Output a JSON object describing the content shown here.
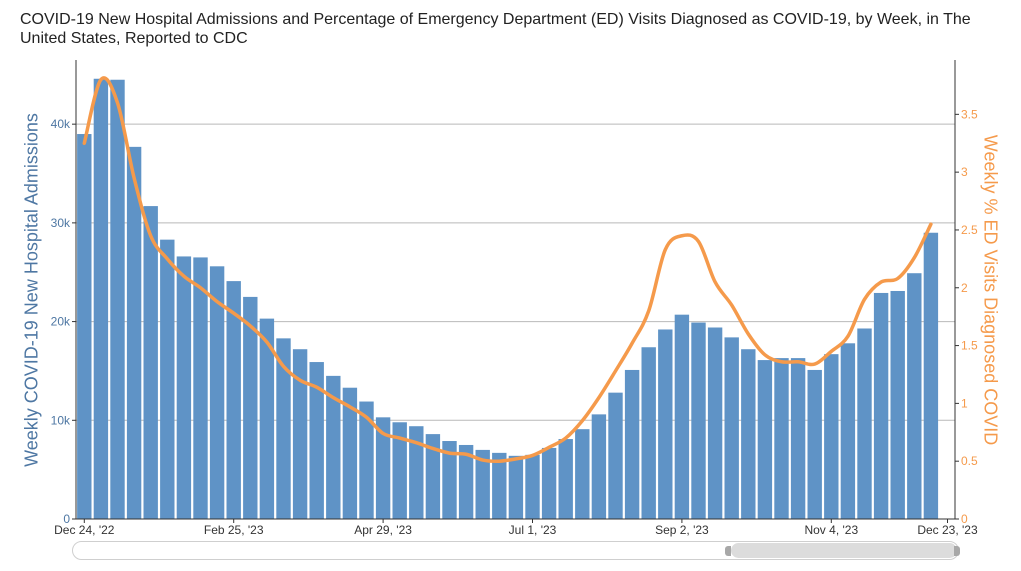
{
  "title": "COVID-19 New Hospital Admissions and Percentage of Emergency Department (ED) Visits Diagnosed as COVID-19, by Week, in The United States, Reported to CDC",
  "colors": {
    "bars": "#5f93c6",
    "line": "#f59a4b",
    "left_axis": "#4e77a3",
    "right_axis": "#f59a4b"
  },
  "chart_data": {
    "type": "bar",
    "ylabel": "Weekly COVID-19 New Hospital Admissions",
    "y2label": "Weekly % ED Visits Diagnosed COVID",
    "ylim": [
      0,
      46500
    ],
    "y2lim": [
      0,
      3.97
    ],
    "yticks": [
      0,
      10000,
      20000,
      30000,
      40000
    ],
    "ytick_labels": [
      "0",
      "10k",
      "20k",
      "30k",
      "40k"
    ],
    "y2ticks": [
      0,
      0.5,
      1,
      1.5,
      2,
      2.5,
      3,
      3.5
    ],
    "y2tick_labels": [
      "0",
      "0.5",
      "1",
      "1.5",
      "2",
      "2.5",
      "3",
      "3.5"
    ],
    "xtick_labels": [
      "Dec 24, '22",
      "Feb 25, '23",
      "Apr 29, '23",
      "Jul 1, '23",
      "Sep 2, '23",
      "Nov 4, '23",
      "Dec 23, '23"
    ],
    "xtick_indices": [
      0,
      9,
      18,
      27,
      36,
      45,
      52
    ],
    "grid": true,
    "series": [
      {
        "name": "Weekly COVID-19 New Hospital Admissions",
        "type": "bar",
        "values": [
          39000,
          44600,
          44500,
          37700,
          31700,
          28300,
          26600,
          26500,
          25600,
          24100,
          22500,
          20300,
          18300,
          17200,
          15900,
          14500,
          13300,
          11900,
          10300,
          9800,
          9400,
          8600,
          7900,
          7500,
          7000,
          6700,
          6400,
          6500,
          7200,
          8100,
          9100,
          10600,
          12800,
          15100,
          17400,
          19200,
          20700,
          19900,
          19400,
          18400,
          17200,
          16100,
          16300,
          16300,
          15100,
          16700,
          17800,
          19300,
          22900,
          23100,
          24900,
          29000
        ]
      },
      {
        "name": "Weekly % ED Visits Diagnosed COVID",
        "type": "line",
        "values": [
          3.25,
          3.8,
          3.6,
          2.95,
          2.45,
          2.25,
          2.1,
          2.0,
          1.88,
          1.78,
          1.67,
          1.53,
          1.32,
          1.2,
          1.14,
          1.05,
          0.97,
          0.88,
          0.74,
          0.7,
          0.66,
          0.61,
          0.57,
          0.56,
          0.51,
          0.5,
          0.52,
          0.55,
          0.62,
          0.7,
          0.85,
          1.05,
          1.28,
          1.52,
          1.8,
          2.33,
          2.45,
          2.4,
          2.05,
          1.85,
          1.6,
          1.42,
          1.36,
          1.36,
          1.34,
          1.45,
          1.58,
          1.9,
          2.05,
          2.08,
          2.26,
          2.55
        ]
      }
    ]
  }
}
